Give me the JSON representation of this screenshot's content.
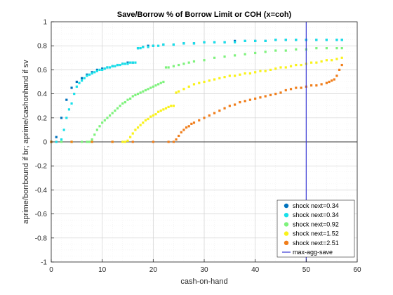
{
  "chart_data": {
    "type": "scatter",
    "title": "Save/Borrow % of Borrow Limit or COH (x=coh)",
    "xlabel": "cash-on-hand",
    "ylabel": "aprime/borrbound if br; aprime/cashonhand if sv",
    "xlim": [
      0,
      60
    ],
    "ylim": [
      -1,
      1
    ],
    "xticks": [
      "0",
      "10",
      "20",
      "30",
      "40",
      "50",
      "60"
    ],
    "yticks": [
      "-1",
      "-0.8",
      "-0.6",
      "-0.4",
      "-0.2",
      "0",
      "0.2",
      "0.4",
      "0.6",
      "0.8",
      "1"
    ],
    "grid": "on (major and minor, dotted)",
    "legend_position": "bottom-right",
    "zero_line": 0,
    "series": [
      {
        "name": "shock next=0.34",
        "color": "#0072bd",
        "x": [
          0,
          1,
          2,
          3,
          4,
          5,
          6,
          7,
          8,
          9,
          10,
          11,
          12,
          13,
          14,
          15,
          16,
          17,
          18,
          19,
          20,
          22,
          24,
          26,
          28,
          30,
          32,
          34,
          36,
          38,
          40,
          42,
          44,
          46,
          48,
          50,
          52,
          54,
          56,
          57
        ],
        "y": [
          0,
          0.04,
          0.2,
          0.35,
          0.45,
          0.5,
          0.53,
          0.56,
          0.58,
          0.6,
          0.61,
          0.62,
          0.63,
          0.64,
          0.65,
          0.66,
          0.66,
          0.78,
          0.79,
          0.8,
          0.8,
          0.81,
          0.81,
          0.82,
          0.82,
          0.83,
          0.83,
          0.83,
          0.84,
          0.84,
          0.84,
          0.84,
          0.85,
          0.85,
          0.85,
          0.85,
          0.85,
          0.85,
          0.85,
          0.85
        ]
      },
      {
        "name": "shock next=0.34",
        "color": "#18e0e9",
        "x": [
          0,
          1,
          2,
          2.5,
          3,
          3.5,
          4,
          4.5,
          5,
          5.5,
          6,
          6.5,
          7,
          7.5,
          8,
          8.5,
          9,
          9.5,
          10,
          10.5,
          11,
          11.5,
          12,
          12.5,
          13,
          13.5,
          14,
          14.5,
          15,
          15.5,
          16,
          16.5,
          17,
          17.5,
          18,
          19,
          20,
          21,
          22,
          24,
          26,
          28,
          30,
          32,
          34,
          36,
          38,
          40,
          42,
          44,
          46,
          48,
          50,
          52,
          54,
          56,
          57
        ],
        "y": [
          0,
          0,
          0.02,
          0.1,
          0.2,
          0.27,
          0.32,
          0.4,
          0.46,
          0.49,
          0.51,
          0.53,
          0.55,
          0.56,
          0.57,
          0.58,
          0.59,
          0.6,
          0.6,
          0.61,
          0.62,
          0.62,
          0.63,
          0.63,
          0.64,
          0.64,
          0.65,
          0.65,
          0.65,
          0.66,
          0.66,
          0.66,
          0.78,
          0.78,
          0.79,
          0.79,
          0.8,
          0.8,
          0.81,
          0.81,
          0.82,
          0.82,
          0.83,
          0.83,
          0.83,
          0.83,
          0.84,
          0.84,
          0.84,
          0.85,
          0.85,
          0.85,
          0.85,
          0.85,
          0.85,
          0.85,
          0.85
        ]
      },
      {
        "name": "shock next=0.92",
        "color": "#7ef27c",
        "x": [
          0,
          2,
          4,
          6,
          7,
          7.5,
          8,
          8.5,
          9,
          9.5,
          10,
          10.5,
          11,
          11.5,
          12,
          12.5,
          13,
          13.5,
          14,
          14.5,
          15,
          15.5,
          16,
          16.5,
          17,
          17.5,
          18,
          18.5,
          19,
          19.5,
          20,
          20.5,
          21,
          21.5,
          22,
          22.5,
          23,
          24,
          25,
          26,
          27,
          28,
          30,
          32,
          34,
          36,
          38,
          40,
          42,
          44,
          46,
          48,
          50,
          52,
          54,
          56,
          57
        ],
        "y": [
          0,
          0,
          0,
          0,
          0,
          0,
          0.02,
          0.06,
          0.1,
          0.13,
          0.16,
          0.18,
          0.2,
          0.22,
          0.24,
          0.26,
          0.28,
          0.3,
          0.32,
          0.33,
          0.35,
          0.36,
          0.38,
          0.39,
          0.4,
          0.41,
          0.42,
          0.43,
          0.44,
          0.45,
          0.46,
          0.47,
          0.48,
          0.49,
          0.5,
          0.62,
          0.62,
          0.63,
          0.64,
          0.65,
          0.66,
          0.67,
          0.68,
          0.7,
          0.71,
          0.72,
          0.73,
          0.74,
          0.75,
          0.76,
          0.76,
          0.77,
          0.77,
          0.78,
          0.78,
          0.78,
          0.78
        ]
      },
      {
        "name": "shock next=1.52",
        "color": "#f9f21a",
        "x": [
          0,
          4,
          8,
          12,
          14,
          14.5,
          15,
          15.5,
          16,
          16.5,
          17,
          17.5,
          18,
          18.5,
          19,
          19.5,
          20,
          20.5,
          21,
          21.5,
          22,
          22.5,
          23,
          23.5,
          24,
          24.5,
          25,
          26,
          27,
          28,
          29,
          30,
          31,
          32,
          33,
          34,
          35,
          36,
          37,
          38,
          39,
          40,
          41,
          42,
          43,
          44,
          45,
          46,
          47,
          48,
          49,
          50,
          51,
          52,
          53,
          54,
          55,
          56,
          57
        ],
        "y": [
          0,
          0,
          0,
          0,
          0,
          0,
          0.01,
          0.04,
          0.07,
          0.1,
          0.12,
          0.14,
          0.16,
          0.18,
          0.19,
          0.21,
          0.22,
          0.23,
          0.25,
          0.26,
          0.27,
          0.28,
          0.29,
          0.3,
          0.3,
          0.41,
          0.42,
          0.44,
          0.46,
          0.48,
          0.49,
          0.5,
          0.51,
          0.52,
          0.53,
          0.54,
          0.55,
          0.55,
          0.56,
          0.57,
          0.57,
          0.58,
          0.59,
          0.59,
          0.6,
          0.61,
          0.62,
          0.62,
          0.63,
          0.64,
          0.64,
          0.65,
          0.66,
          0.66,
          0.67,
          0.68,
          0.68,
          0.69,
          0.7
        ]
      },
      {
        "name": "shock next=2.51",
        "color": "#f07e1b",
        "x": [
          0,
          4,
          8,
          12,
          16,
          20,
          23,
          24,
          24.5,
          25,
          25.5,
          26,
          26.5,
          27,
          27.5,
          28,
          29,
          30,
          31,
          32,
          33,
          34,
          35,
          36,
          37,
          38,
          39,
          40,
          41,
          42,
          43,
          44,
          45,
          46,
          47,
          48,
          49,
          50,
          51,
          52,
          53,
          54,
          54.5,
          55,
          55.5,
          56,
          56.5,
          57
        ],
        "y": [
          0,
          0,
          0,
          0,
          0,
          0,
          0,
          0,
          0.02,
          0.05,
          0.08,
          0.1,
          0.12,
          0.13,
          0.15,
          0.16,
          0.18,
          0.2,
          0.22,
          0.24,
          0.26,
          0.28,
          0.3,
          0.31,
          0.33,
          0.34,
          0.35,
          0.36,
          0.37,
          0.38,
          0.39,
          0.4,
          0.41,
          0.43,
          0.44,
          0.45,
          0.45,
          0.46,
          0.47,
          0.47,
          0.48,
          0.49,
          0.5,
          0.51,
          0.52,
          0.55,
          0.6,
          0.64
        ]
      }
    ],
    "vline": {
      "name": "max-agg-save",
      "x": 50,
      "color": "#3b3bd6"
    }
  }
}
